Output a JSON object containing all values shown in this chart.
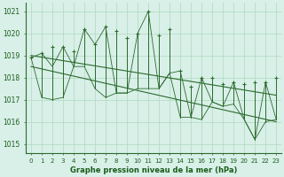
{
  "x": [
    0,
    1,
    2,
    3,
    4,
    5,
    6,
    7,
    8,
    9,
    10,
    11,
    12,
    13,
    14,
    15,
    16,
    17,
    18,
    19,
    20,
    21,
    22,
    23
  ],
  "y_max": [
    1018.9,
    1019.1,
    1019.4,
    1019.4,
    1019.2,
    1020.2,
    1019.5,
    1020.3,
    1020.1,
    1019.8,
    1020.0,
    1021.0,
    1019.9,
    1020.2,
    1018.3,
    1017.6,
    1018.0,
    1018.0,
    1017.7,
    1017.8,
    1017.7,
    1017.8,
    1017.8,
    1018.0
  ],
  "y_min": [
    1018.9,
    1017.1,
    1017.0,
    1017.1,
    1018.5,
    1018.5,
    1017.5,
    1017.1,
    1017.3,
    1017.3,
    1017.5,
    1017.5,
    1017.5,
    1018.2,
    1016.2,
    1016.2,
    1016.1,
    1016.9,
    1016.7,
    1016.8,
    1016.1,
    1015.2,
    1016.0,
    1016.1
  ],
  "y_line": [
    1018.9,
    1019.1,
    1018.5,
    1019.4,
    1018.5,
    1020.2,
    1019.5,
    1020.3,
    1017.3,
    1017.3,
    1020.0,
    1021.0,
    1017.5,
    1018.2,
    1018.3,
    1016.2,
    1018.0,
    1016.9,
    1016.7,
    1017.8,
    1016.1,
    1015.2,
    1017.8,
    1016.1
  ],
  "trend_upper": [
    1019.0,
    1017.2
  ],
  "trend_lower": [
    1018.5,
    1016.0
  ],
  "line_color": "#2d6a2d",
  "bg_color": "#d8f0e8",
  "grid_color": "#b0d8c0",
  "title": "Graphe pression niveau de la mer (hPa)",
  "ylabel_ticks": [
    1015,
    1016,
    1017,
    1018,
    1019,
    1020,
    1021
  ],
  "xlim": [
    -0.5,
    23.5
  ],
  "ylim": [
    1014.6,
    1021.4
  ],
  "title_color": "#1a5c1a",
  "title_fontsize": 6.0,
  "tick_fontsize": 5.5
}
